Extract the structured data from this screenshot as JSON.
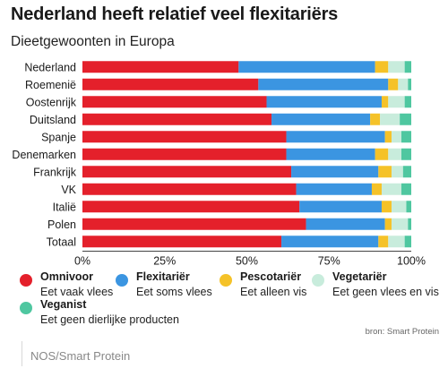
{
  "chart_data": {
    "type": "bar",
    "orientation": "horizontal",
    "stacked": true,
    "title": "Nederland heeft relatief veel flexitariërs",
    "subtitle": "Dieetgewoonten in Europa",
    "categories": [
      "Nederland",
      "Roemenië",
      "Oostenrijk",
      "Duitsland",
      "Spanje",
      "Denemarken",
      "Frankrijk",
      "VK",
      "Italië",
      "Polen",
      "Totaal"
    ],
    "xlim": [
      0,
      100
    ],
    "x_ticks": [
      "0%",
      "25%",
      "50%",
      "75%",
      "100%"
    ],
    "grid": false,
    "series": [
      {
        "name": "Omnivoor",
        "desc": "Eet vaak vlees",
        "color": "#e4202b",
        "values": [
          47.5,
          53.5,
          56,
          57.5,
          62,
          62,
          63.5,
          65,
          66,
          68,
          60.5
        ]
      },
      {
        "name": "Flexitariër",
        "desc": "Eet soms vlees",
        "color": "#3b95e1",
        "values": [
          41.5,
          39.5,
          35,
          30,
          30,
          27,
          26.5,
          23,
          25,
          24,
          29.5
        ]
      },
      {
        "name": "Pescotariër",
        "desc": "Eet alleen vis",
        "color": "#f5c228",
        "values": [
          4,
          3,
          2,
          3,
          2,
          4,
          4,
          3,
          3,
          2,
          3
        ]
      },
      {
        "name": "Vegetariër",
        "desc": "Eet geen vlees en vis",
        "color": "#c8ecdc",
        "values": [
          5,
          3,
          5,
          6,
          3,
          4,
          3.5,
          6,
          4.5,
          5,
          5
        ]
      },
      {
        "name": "Veganist",
        "desc": "Eet geen dierlijke producten",
        "color": "#4fc7a0",
        "values": [
          2,
          1,
          2,
          3.5,
          3,
          3,
          2.5,
          3,
          1.5,
          1,
          2
        ]
      }
    ]
  },
  "source": "bron: Smart Protein",
  "footer": "NOS/Smart Protein"
}
